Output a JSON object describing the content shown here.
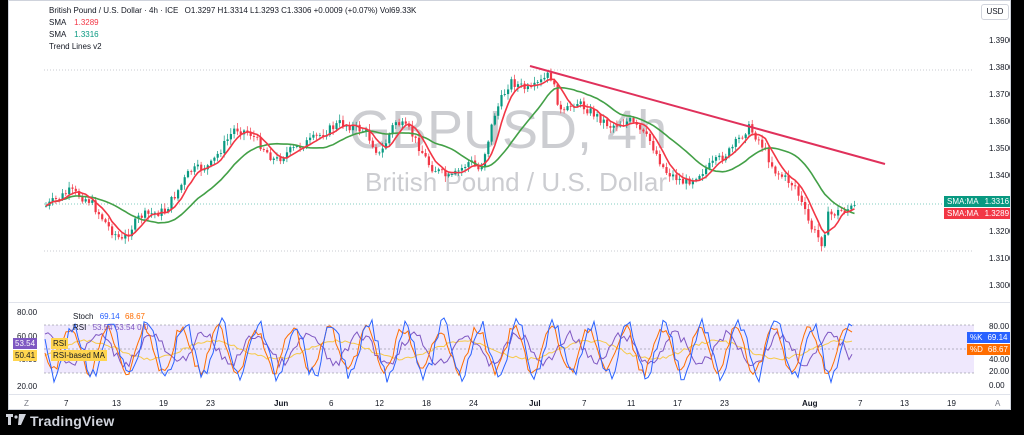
{
  "header": {
    "symbol": "British Pound / U.S. Dollar · 4h · ICE",
    "ohlc": "O1.3297 H1.3314 L1.3293 C1.3306 +0.0009 (+0.07%) Vol69.33K",
    "indicators": [
      {
        "name": "SMA",
        "value": "1.3289",
        "color": "#f23645"
      },
      {
        "name": "SMA",
        "value": "1.3316",
        "color": "#089981"
      },
      {
        "name": "Trend Lines v2",
        "value": "",
        "color": ""
      }
    ],
    "currency_button": "USD"
  },
  "watermark": {
    "symbol": "GBPUSD, 4h",
    "description": "British Pound / U.S. Dollar"
  },
  "price_axis": {
    "ticks": [
      "1.3900",
      "1.3800",
      "1.3700",
      "1.3600",
      "1.3500",
      "1.3400",
      "1.3300",
      "1.3200",
      "1.3100",
      "1.3000"
    ]
  },
  "price_tags": [
    {
      "label": "SMA:MA",
      "value": "1.3316",
      "color": "#089981"
    },
    {
      "label": "SMA:MA",
      "value": "1.3289",
      "color": "#f23645"
    }
  ],
  "oscillator": {
    "legend_stoch": "Stoch",
    "stoch_k": "69.14",
    "stoch_d": "68.67",
    "legend_rsi": "RSI",
    "rsi_values": "53.54  53.54  0  0",
    "left_scale": [
      "80.00",
      "60.00",
      "40.00",
      "20.00"
    ],
    "left_tags": [
      {
        "value": "53.54",
        "label": "RSI"
      },
      {
        "value": "50.41",
        "label": "RSI-based MA"
      }
    ],
    "right_scale": [
      "80.00",
      "40.00",
      "20.00",
      "0.00"
    ],
    "right_tags": [
      {
        "label": "%K",
        "value": "69.14",
        "color": "#2962ff"
      },
      {
        "label": "%D",
        "value": "68.67",
        "color": "#ff6d00"
      }
    ]
  },
  "time_axis": {
    "labels": [
      "7",
      "13",
      "19",
      "23",
      "Jun",
      "6",
      "12",
      "18",
      "24",
      "Jul",
      "7",
      "11",
      "17",
      "23",
      "Aug",
      "7",
      "13",
      "19"
    ],
    "left_icon": "Z",
    "right_icon": "A"
  },
  "footer": {
    "brand": "TradingView"
  },
  "colors": {
    "up": "#089981",
    "down": "#f23645",
    "sma_fast": "#f23645",
    "sma_slow": "#43a047",
    "trend": "#e0315b"
  }
}
